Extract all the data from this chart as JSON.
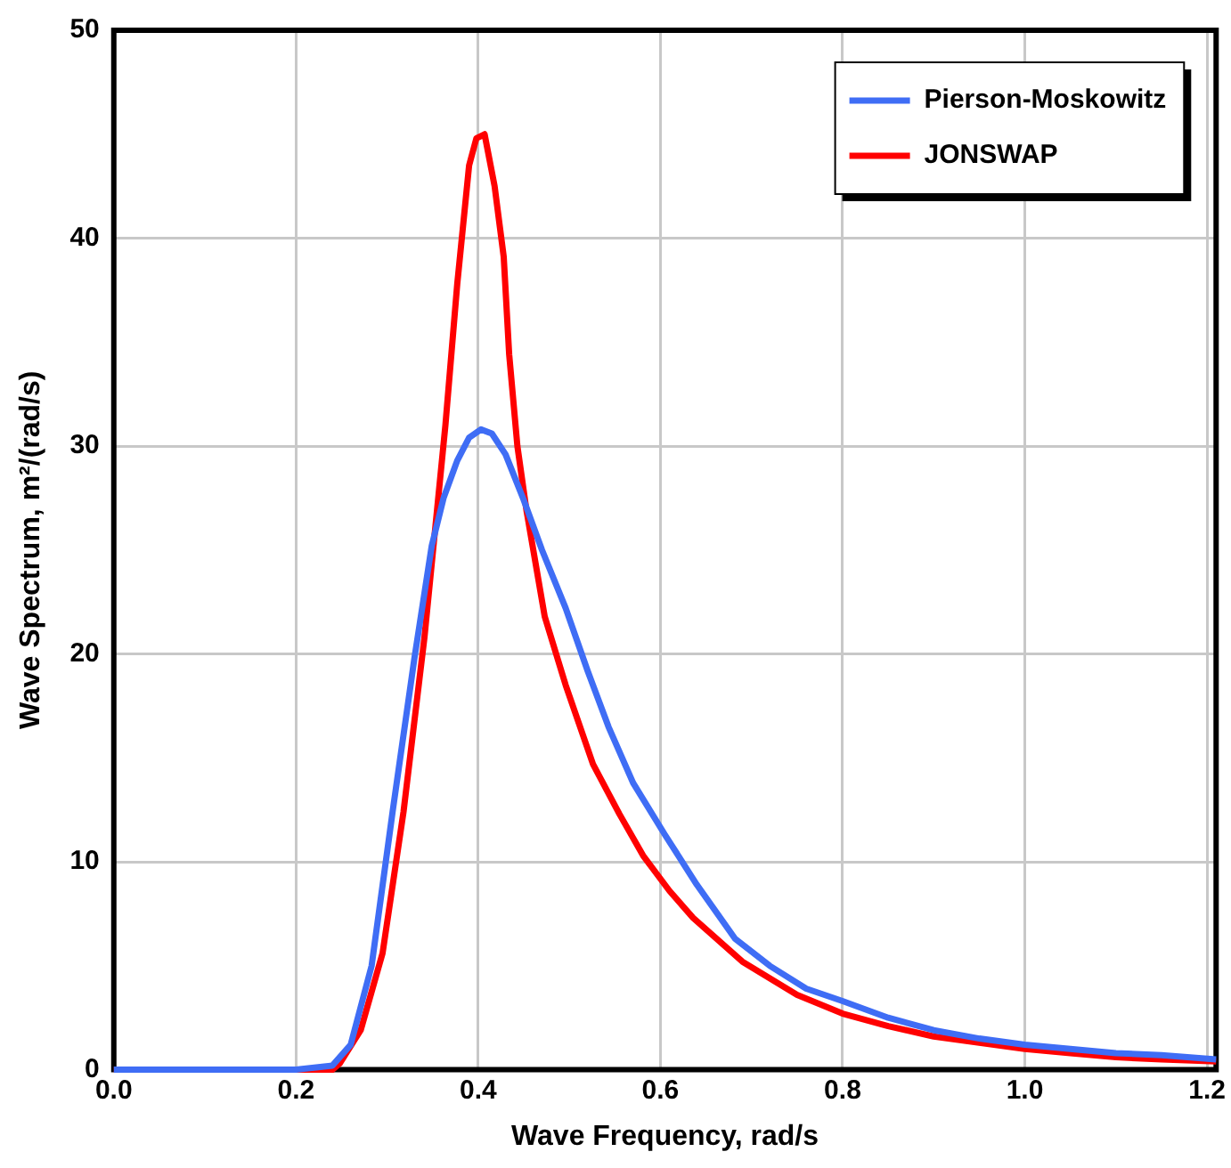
{
  "chart_data": {
    "type": "line",
    "xlabel": "Wave Frequency, rad/s",
    "ylabel": "Wave Spectrum, m²/(rad/s)",
    "xlim": [
      0,
      1.21
    ],
    "ylim": [
      0,
      50
    ],
    "xticks": [
      {
        "value": 0,
        "label": "0.0"
      },
      {
        "value": 0.2,
        "label": "0.2"
      },
      {
        "value": 0.4,
        "label": "0.4"
      },
      {
        "value": 0.6,
        "label": "0.6"
      },
      {
        "value": 0.8,
        "label": "0.8"
      },
      {
        "value": 1,
        "label": "1.0"
      },
      {
        "value": 1.2,
        "label": "1.2"
      }
    ],
    "yticks": [
      0,
      10,
      20,
      30,
      40,
      50
    ],
    "grid": true,
    "legend": "top right",
    "marker": "none",
    "line_style": "solid",
    "series": [
      {
        "name": "Pierson-Moskowitz",
        "color": "#3f6df5",
        "x": [
          0,
          0.1,
          0.2,
          0.24,
          0.26,
          0.283,
          0.306,
          0.33,
          0.349,
          0.362,
          0.377,
          0.39,
          0.403,
          0.415,
          0.43,
          0.45,
          0.47,
          0.496,
          0.52,
          0.543,
          0.57,
          0.605,
          0.64,
          0.682,
          0.72,
          0.76,
          0.8,
          0.85,
          0.9,
          0.95,
          1,
          1.05,
          1.1,
          1.15,
          1.21
        ],
        "values": [
          0,
          0,
          0,
          0.2,
          1.2,
          5,
          12.4,
          19.8,
          25.2,
          27.5,
          29.3,
          30.4,
          30.8,
          30.6,
          29.6,
          27.4,
          25,
          22.2,
          19.2,
          16.5,
          13.8,
          11.3,
          8.9,
          6.3,
          5,
          3.9,
          3.3,
          2.5,
          1.9,
          1.5,
          1.2,
          1,
          0.8,
          0.7,
          0.5
        ]
      },
      {
        "name": "JONSWAP",
        "color": "#ff0000",
        "x": [
          0,
          0.1,
          0.2,
          0.24,
          0.248,
          0.271,
          0.295,
          0.318,
          0.341,
          0.364,
          0.377,
          0.39,
          0.398,
          0.407,
          0.418,
          0.428,
          0.434,
          0.443,
          0.453,
          0.473,
          0.496,
          0.526,
          0.555,
          0.581,
          0.61,
          0.636,
          0.69,
          0.75,
          0.8,
          0.85,
          0.9,
          0.95,
          1,
          1.05,
          1.1,
          1.15,
          1.21
        ],
        "values": [
          0,
          0,
          0,
          0,
          0.3,
          1.9,
          5.6,
          12.4,
          20.8,
          31,
          37.8,
          43.5,
          44.8,
          45,
          42.5,
          39.1,
          34.4,
          30,
          26.9,
          21.8,
          18.5,
          14.7,
          12.3,
          10.3,
          8.6,
          7.3,
          5.2,
          3.6,
          2.7,
          2.1,
          1.6,
          1.3,
          1,
          0.8,
          0.6,
          0.5,
          0.4
        ]
      }
    ]
  }
}
